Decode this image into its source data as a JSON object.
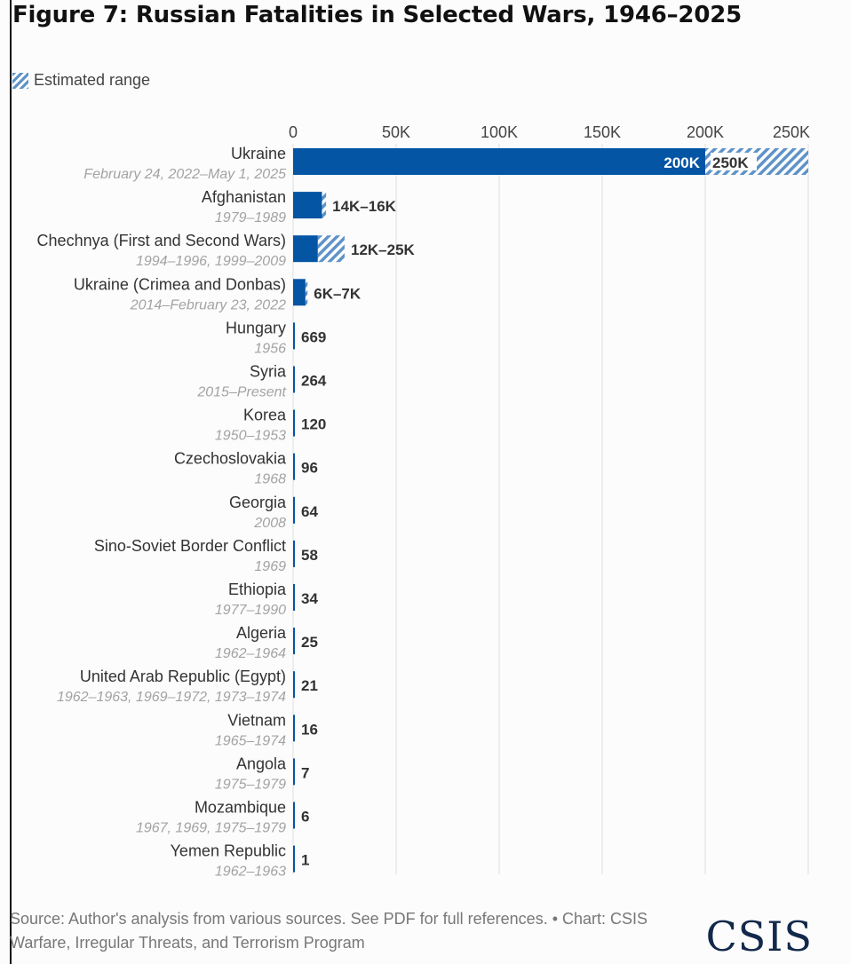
{
  "title": "Figure 7: Russian Fatalities in Selected Wars, 1946–2025",
  "legend": {
    "estimated_range": "Estimated range"
  },
  "source_line1": "Source: Author's analysis from various sources. See PDF for full references. • Chart: CSIS",
  "source_line2": "Warfare, Irregular Threats, and Terrorism Program",
  "logo": "CSIS",
  "colors": {
    "bar": "#0455a4",
    "range_hatch": "#5f93c7",
    "gridline": "#dedede"
  },
  "chart_data": {
    "type": "bar",
    "orientation": "horizontal",
    "xlim": [
      0,
      250000
    ],
    "xticks": [
      0,
      50000,
      100000,
      150000,
      200000,
      250000
    ],
    "xtick_labels": [
      "0",
      "50K",
      "100K",
      "150K",
      "200K",
      "250K"
    ],
    "grid": true,
    "categories": [
      {
        "name": "Ukraine",
        "period": "February 24, 2022–May 1, 2025",
        "value": 200000,
        "high": 250000,
        "label": "200K",
        "high_label": "250K"
      },
      {
        "name": "Afghanistan",
        "period": "1979–1989",
        "value": 14000,
        "high": 16000,
        "label": "14K–16K"
      },
      {
        "name": "Chechnya (First and Second Wars)",
        "period": "1994–1996, 1999–2009",
        "value": 12000,
        "high": 25000,
        "label": "12K–25K"
      },
      {
        "name": "Ukraine (Crimea and Donbas)",
        "period": "2014–February 23, 2022",
        "value": 6000,
        "high": 7000,
        "label": "6K–7K"
      },
      {
        "name": "Hungary",
        "period": "1956",
        "value": 669,
        "label": "669"
      },
      {
        "name": "Syria",
        "period": "2015–Present",
        "value": 264,
        "label": "264"
      },
      {
        "name": "Korea",
        "period": "1950–1953",
        "value": 120,
        "label": "120"
      },
      {
        "name": "Czechoslovakia",
        "period": "1968",
        "value": 96,
        "label": "96"
      },
      {
        "name": "Georgia",
        "period": "2008",
        "value": 64,
        "label": "64"
      },
      {
        "name": "Sino-Soviet Border Conflict",
        "period": "1969",
        "value": 58,
        "label": "58"
      },
      {
        "name": "Ethiopia",
        "period": "1977–1990",
        "value": 34,
        "label": "34"
      },
      {
        "name": "Algeria",
        "period": "1962–1964",
        "value": 25,
        "label": "25"
      },
      {
        "name": "United Arab Republic (Egypt)",
        "period": "1962–1963, 1969–1972, 1973–1974",
        "value": 21,
        "label": "21"
      },
      {
        "name": "Vietnam",
        "period": "1965–1974",
        "value": 16,
        "label": "16"
      },
      {
        "name": "Angola",
        "period": "1975–1979",
        "value": 7,
        "label": "7"
      },
      {
        "name": "Mozambique",
        "period": "1967, 1969, 1975–1979",
        "value": 6,
        "label": "6"
      },
      {
        "name": "Yemen Republic",
        "period": "1962–1963",
        "value": 1,
        "label": "1"
      }
    ]
  }
}
